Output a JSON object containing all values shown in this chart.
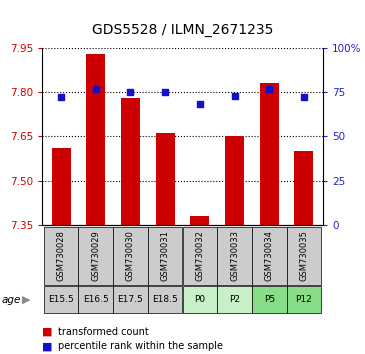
{
  "title": "GDS5528 / ILMN_2671235",
  "samples": [
    "GSM730028",
    "GSM730029",
    "GSM730030",
    "GSM730031",
    "GSM730032",
    "GSM730033",
    "GSM730034",
    "GSM730035"
  ],
  "age_labels": [
    "E15.5",
    "E16.5",
    "E17.5",
    "E18.5",
    "P0",
    "P2",
    "P5",
    "P12"
  ],
  "transformed_counts": [
    7.61,
    7.93,
    7.78,
    7.66,
    7.38,
    7.65,
    7.83,
    7.6
  ],
  "percentile_ranks": [
    72,
    77,
    75,
    75,
    68,
    73,
    77,
    72
  ],
  "ylim_left": [
    7.35,
    7.95
  ],
  "ylim_right": [
    0,
    100
  ],
  "right_ticks": [
    0,
    25,
    50,
    75,
    100
  ],
  "right_tick_labels": [
    "0",
    "25",
    "50",
    "75",
    "100%"
  ],
  "left_ticks": [
    7.35,
    7.5,
    7.65,
    7.8,
    7.95
  ],
  "bar_color": "#cc0000",
  "dot_color": "#1111cc",
  "bar_width": 0.55,
  "ylabel_left_color": "#cc0000",
  "ylabel_right_color": "#2222cc",
  "sample_bg": "#cccccc",
  "age_bg_early": "#cccccc",
  "age_bg_p0_p2": "#c8f0c8",
  "age_bg_p5_p12": "#88dd88",
  "legend_bar_color": "#cc0000",
  "legend_dot_color": "#1111cc"
}
